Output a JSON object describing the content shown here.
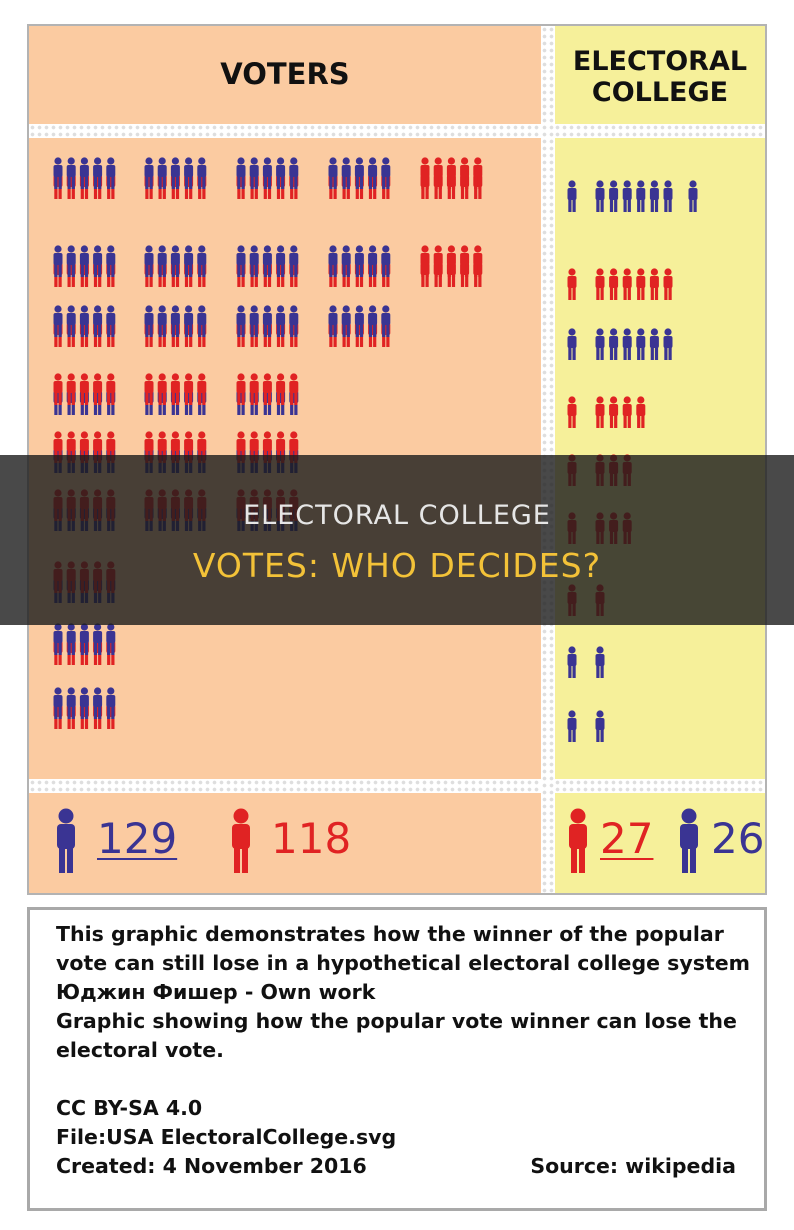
{
  "figure": {
    "voters_title": "VOTERS",
    "ec_title_line1": "ELECTORAL",
    "ec_title_line2": "COLLEGE",
    "colors": {
      "blue": "#3a3493",
      "red": "#e02323",
      "voters_background": "#fbcba1",
      "electoral_background": "#f6f09a"
    },
    "voter_rows": [
      {
        "groups": [
          {
            "top": "blue",
            "bottom": "red"
          },
          {
            "top": "blue",
            "bottom": "red"
          },
          {
            "top": "blue",
            "bottom": "red"
          },
          {
            "top": "blue",
            "bottom": "red"
          },
          {
            "top": "red",
            "bottom": "red"
          }
        ],
        "ec": [
          "blue",
          "blue",
          "blue",
          "blue",
          "blue",
          "blue",
          "blue",
          "blue"
        ]
      },
      {
        "groups": [
          {
            "top": "blue",
            "bottom": "red"
          },
          {
            "top": "blue",
            "bottom": "red"
          },
          {
            "top": "blue",
            "bottom": "red"
          },
          {
            "top": "blue",
            "bottom": "red"
          },
          {
            "top": "red",
            "bottom": "red"
          }
        ],
        "ec": [
          "red",
          "red",
          "red",
          "red",
          "red",
          "red",
          "red"
        ]
      },
      {
        "groups": [
          {
            "top": "blue",
            "bottom": "red"
          },
          {
            "top": "blue",
            "bottom": "red"
          },
          {
            "top": "blue",
            "bottom": "red"
          },
          {
            "top": "blue",
            "bottom": "red"
          }
        ],
        "ec": [
          "blue",
          "blue",
          "blue",
          "blue",
          "blue",
          "blue",
          "blue"
        ]
      },
      {
        "groups": [
          {
            "top": "red",
            "bottom": "blue"
          },
          {
            "top": "red",
            "bottom": "blue"
          },
          {
            "top": "red",
            "bottom": "blue"
          }
        ],
        "ec": [
          "red",
          "red",
          "red",
          "red",
          "red"
        ]
      },
      {
        "groups": [
          {
            "top": "red",
            "bottom": "blue"
          },
          {
            "top": "red",
            "bottom": "blue"
          },
          {
            "top": "red",
            "bottom": "blue"
          }
        ],
        "ec": [
          "red",
          "red",
          "red",
          "red"
        ]
      },
      {
        "groups": [
          {
            "top": "red",
            "bottom": "blue"
          },
          {
            "top": "red",
            "bottom": "blue"
          },
          {
            "top": "red",
            "bottom": "blue"
          }
        ],
        "ec": [
          "red",
          "red",
          "red",
          "red"
        ]
      },
      {
        "groups": [
          {
            "top": "red",
            "bottom": "blue"
          }
        ],
        "ec": [
          "red",
          "red"
        ]
      },
      {
        "groups": [
          {
            "top": "blue",
            "bottom": "red"
          }
        ],
        "ec": [
          "blue",
          "blue"
        ]
      },
      {
        "groups": [
          {
            "top": "blue",
            "bottom": "red"
          }
        ],
        "ec": [
          "blue",
          "blue"
        ]
      }
    ],
    "totals": {
      "voters_blue": "129",
      "voters_red": "118",
      "electoral_red": "27",
      "electoral_blue": "26"
    }
  },
  "banner": {
    "line1": "ELECTORAL COLLEGE",
    "line2": "VOTES: WHO DECIDES?"
  },
  "caption": {
    "line1": "This graphic demonstrates how the winner of the popular",
    "line2": "vote can still lose in a hypothetical electoral college system",
    "line3": "Юджин Фишер - Own work",
    "line4": "Graphic showing how the popular vote winner can lose the",
    "line5": "electoral vote.",
    "license": "CC BY-SA 4.0",
    "file": "File:USA ElectoralCollege.svg",
    "created": "Created: 4 November 2016",
    "source": "Source: wikipedia"
  }
}
